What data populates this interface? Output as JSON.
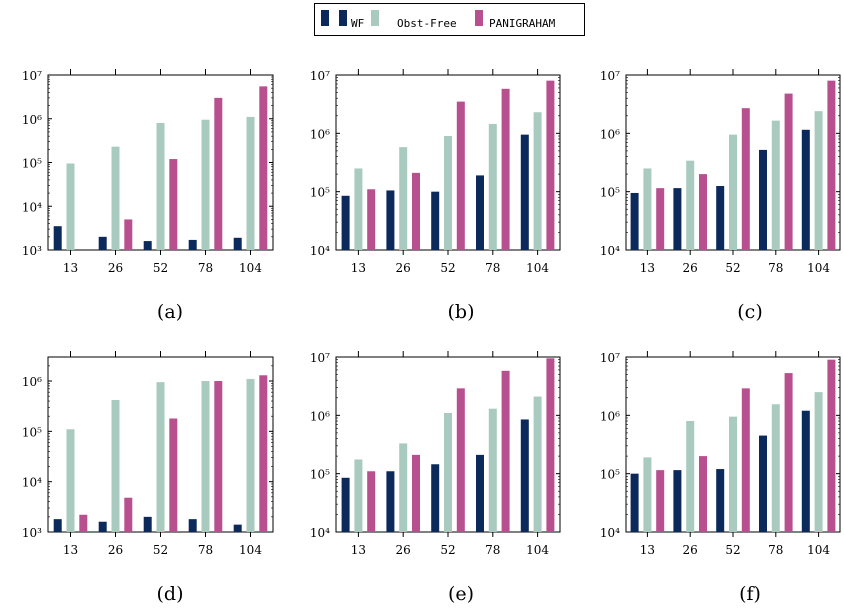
{
  "legend": [
    {
      "name": "WF",
      "color": "#0b2a5b"
    },
    {
      "name": "Obst-Free",
      "color": "#a9cbbf"
    },
    {
      "name": "PANIGRAHAM",
      "color": "#b8508f"
    }
  ],
  "colors": {
    "wf": "#0b2a5b",
    "obst": "#a9cbbf",
    "pani": "#b8508f",
    "axis": "#000000"
  },
  "chart_data": [
    {
      "type": "bar",
      "panel": "(a)",
      "scale": "log",
      "categories": [
        "13",
        "26",
        "52",
        "78",
        "104"
      ],
      "ylim": [
        1000,
        10000000
      ],
      "y_ticks": [
        1000,
        10000,
        100000,
        1000000,
        10000000
      ],
      "series": [
        {
          "name": "WF",
          "values": [
            3500,
            2000,
            1600,
            1700,
            1900
          ]
        },
        {
          "name": "Obst-Free",
          "values": [
            95000,
            230000,
            800000,
            950000,
            1100000
          ]
        },
        {
          "name": "PANIGRAHAM",
          "values": [
            null,
            5000,
            120000,
            3000000,
            5500000
          ]
        }
      ]
    },
    {
      "type": "bar",
      "panel": "(b)",
      "scale": "log",
      "categories": [
        "13",
        "26",
        "52",
        "78",
        "104"
      ],
      "ylim": [
        10000,
        10000000
      ],
      "y_ticks": [
        10000,
        100000,
        1000000,
        10000000
      ],
      "series": [
        {
          "name": "WF",
          "values": [
            85000,
            105000,
            100000,
            190000,
            950000
          ]
        },
        {
          "name": "Obst-Free",
          "values": [
            250000,
            580000,
            900000,
            1450000,
            2300000
          ]
        },
        {
          "name": "PANIGRAHAM",
          "values": [
            110000,
            210000,
            3500000,
            5800000,
            8000000
          ]
        }
      ]
    },
    {
      "type": "bar",
      "panel": "(c)",
      "scale": "log",
      "categories": [
        "13",
        "26",
        "52",
        "78",
        "104"
      ],
      "ylim": [
        10000,
        10000000
      ],
      "y_ticks": [
        10000,
        100000,
        1000000,
        10000000
      ],
      "series": [
        {
          "name": "WF",
          "values": [
            95000,
            115000,
            125000,
            520000,
            1150000
          ]
        },
        {
          "name": "Obst-Free",
          "values": [
            250000,
            340000,
            950000,
            1650000,
            2400000
          ]
        },
        {
          "name": "PANIGRAHAM",
          "values": [
            115000,
            200000,
            2700000,
            4800000,
            8000000
          ]
        }
      ]
    },
    {
      "type": "bar",
      "panel": "(d)",
      "scale": "log",
      "categories": [
        "13",
        "26",
        "52",
        "78",
        "104"
      ],
      "ylim": [
        1000,
        3000000
      ],
      "y_ticks": [
        1000,
        10000,
        100000,
        1000000
      ],
      "series": [
        {
          "name": "WF",
          "values": [
            1800,
            1600,
            2000,
            1800,
            1400
          ]
        },
        {
          "name": "Obst-Free",
          "values": [
            110000,
            420000,
            950000,
            1000000,
            1100000
          ]
        },
        {
          "name": "PANIGRAHAM",
          "values": [
            2200,
            4800,
            180000,
            1000000,
            1300000
          ]
        }
      ]
    },
    {
      "type": "bar",
      "panel": "(e)",
      "scale": "log",
      "categories": [
        "13",
        "26",
        "52",
        "78",
        "104"
      ],
      "ylim": [
        10000,
        10000000
      ],
      "y_ticks": [
        10000,
        100000,
        1000000,
        10000000
      ],
      "series": [
        {
          "name": "WF",
          "values": [
            85000,
            110000,
            145000,
            210000,
            850000
          ]
        },
        {
          "name": "Obst-Free",
          "values": [
            175000,
            330000,
            1100000,
            1300000,
            2100000
          ]
        },
        {
          "name": "PANIGRAHAM",
          "values": [
            110000,
            210000,
            2900000,
            5800000,
            9500000
          ]
        }
      ]
    },
    {
      "type": "bar",
      "panel": "(f)",
      "scale": "log",
      "categories": [
        "13",
        "26",
        "52",
        "78",
        "104"
      ],
      "ylim": [
        10000,
        10000000
      ],
      "y_ticks": [
        10000,
        100000,
        1000000,
        10000000
      ],
      "series": [
        {
          "name": "WF",
          "values": [
            100000,
            115000,
            120000,
            450000,
            1200000
          ]
        },
        {
          "name": "Obst-Free",
          "values": [
            190000,
            800000,
            950000,
            1550000,
            2500000
          ]
        },
        {
          "name": "PANIGRAHAM",
          "values": [
            115000,
            200000,
            2900000,
            5300000,
            9000000
          ]
        }
      ]
    }
  ]
}
